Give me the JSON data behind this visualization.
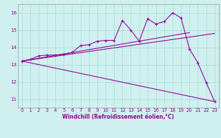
{
  "xlabel": "Windchill (Refroidissement éolien,°C)",
  "bg_color": "#cff0ee",
  "line_color": "#990099",
  "grid_color": "#aadddd",
  "xlim": [
    -0.5,
    23.5
  ],
  "ylim": [
    10.5,
    16.5
  ],
  "yticks": [
    11,
    12,
    13,
    14,
    15,
    16
  ],
  "xticks": [
    0,
    1,
    2,
    3,
    4,
    5,
    6,
    7,
    8,
    9,
    10,
    11,
    12,
    13,
    14,
    15,
    16,
    17,
    18,
    19,
    20,
    21,
    22,
    23
  ],
  "data_line": {
    "x": [
      0,
      1,
      2,
      3,
      4,
      5,
      6,
      7,
      8,
      9,
      10,
      11,
      12,
      13,
      14,
      15,
      16,
      17,
      18,
      19,
      20,
      21,
      22,
      23
    ],
    "y": [
      13.2,
      13.3,
      13.5,
      13.55,
      13.55,
      13.6,
      13.7,
      14.1,
      14.15,
      14.35,
      14.4,
      14.4,
      15.55,
      15.0,
      14.35,
      15.65,
      15.35,
      15.5,
      16.0,
      15.7,
      13.9,
      13.1,
      11.95,
      10.85
    ]
  },
  "regression_lines": [
    {
      "x": [
        0,
        20
      ],
      "y": [
        13.2,
        14.85
      ]
    },
    {
      "x": [
        0,
        23
      ],
      "y": [
        13.2,
        14.8
      ]
    },
    {
      "x": [
        0,
        23
      ],
      "y": [
        13.2,
        10.85
      ]
    }
  ],
  "xlabel_fontsize": 5.5,
  "tick_fontsize": 5,
  "linewidth": 0.8,
  "markersize": 3.0
}
